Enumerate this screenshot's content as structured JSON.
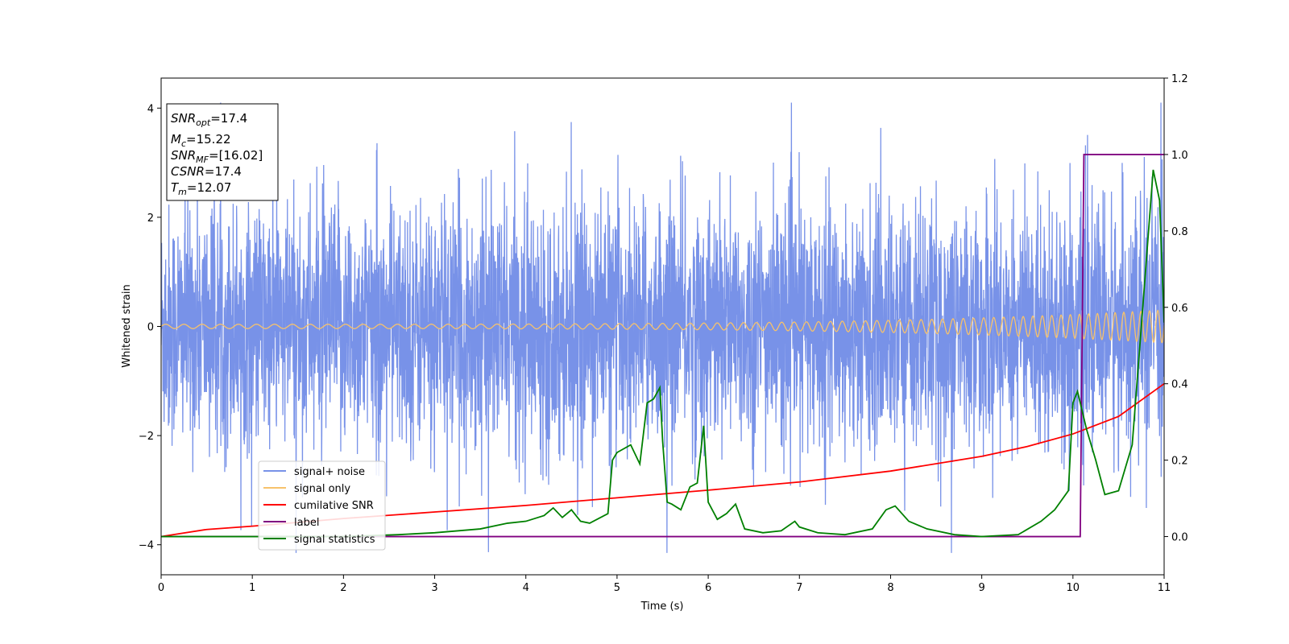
{
  "chart_data": {
    "type": "line",
    "title": "",
    "xlabel": "Time (s)",
    "ylabel": "Whitened strain",
    "xlim": [
      0,
      11
    ],
    "ylim": [
      -4.55,
      4.55
    ],
    "y2lim": [
      -0.1,
      1.2
    ],
    "xticks": [
      0,
      1,
      2,
      3,
      4,
      5,
      6,
      7,
      8,
      9,
      10,
      11
    ],
    "yticks": [
      -4,
      -2,
      0,
      2,
      4
    ],
    "y2ticks": [
      "0.0",
      "0.2",
      "0.4",
      "0.6",
      "0.8",
      "1.0",
      "1.2"
    ],
    "legend_position": "lower-left",
    "grid": false,
    "info_box": {
      "snr_opt": {
        "symbol": "SNR",
        "subscript": "opt",
        "value": "=17.4"
      },
      "mc": {
        "symbol": "M",
        "subscript": "c",
        "value": "=15.22"
      },
      "snr_mf": {
        "symbol": "SNR",
        "subscript": "MF",
        "value": "=[16.02]"
      },
      "csnr": {
        "symbol": "CSNR",
        "subscript": "",
        "value": "=17.4"
      },
      "tm": {
        "symbol": "T",
        "subscript": "m",
        "value": "=12.07"
      }
    },
    "series": [
      {
        "name": "signal+ noise",
        "color": "#7892e8",
        "axis": "left",
        "description_of_shape": "dense noise envelope",
        "envelope": {
          "typical_abs": 1.1,
          "peak_range": [
            -4.15,
            4.1
          ]
        }
      },
      {
        "name": "signal only",
        "color": "#f7c26b",
        "axis": "left",
        "chirp": {
          "amplitude_start": 0.04,
          "amplitude_end": 0.3,
          "freq_start_hz": 5,
          "freq_end_hz": 11
        }
      },
      {
        "name": "cumilative SNR",
        "color": "#ff0000",
        "axis": "left",
        "x": [
          0,
          0.5,
          1,
          2,
          3,
          4,
          5,
          6,
          7,
          8,
          9,
          9.5,
          10,
          10.5,
          11
        ],
        "y": [
          -3.85,
          -3.72,
          -3.66,
          -3.52,
          -3.4,
          -3.28,
          -3.14,
          -3.0,
          -2.85,
          -2.65,
          -2.38,
          -2.2,
          -1.97,
          -1.65,
          -1.05
        ]
      },
      {
        "name": "label",
        "color": "#800080",
        "axis": "right",
        "x": [
          0,
          10.08,
          10.12,
          11
        ],
        "y": [
          0,
          0,
          1,
          1
        ]
      },
      {
        "name": "signal statistics",
        "color": "#008000",
        "axis": "right",
        "x": [
          0,
          1,
          2,
          2.6,
          3,
          3.5,
          3.8,
          4.0,
          4.2,
          4.3,
          4.4,
          4.5,
          4.6,
          4.7,
          4.9,
          4.95,
          5.0,
          5.15,
          5.25,
          5.33,
          5.4,
          5.47,
          5.5,
          5.55,
          5.6,
          5.7,
          5.8,
          5.88,
          5.95,
          6.0,
          6.1,
          6.2,
          6.3,
          6.4,
          6.6,
          6.8,
          6.95,
          7.0,
          7.2,
          7.5,
          7.8,
          7.95,
          8.05,
          8.2,
          8.4,
          8.7,
          9.0,
          9.4,
          9.65,
          9.8,
          9.95,
          10.0,
          10.05,
          10.15,
          10.25,
          10.35,
          10.5,
          10.65,
          10.75,
          10.88,
          10.95,
          11.0
        ],
        "y": [
          0,
          0.0,
          0.0,
          0.005,
          0.01,
          0.02,
          0.035,
          0.04,
          0.055,
          0.075,
          0.05,
          0.07,
          0.04,
          0.035,
          0.06,
          0.2,
          0.22,
          0.24,
          0.19,
          0.35,
          0.36,
          0.39,
          0.25,
          0.09,
          0.085,
          0.07,
          0.13,
          0.14,
          0.29,
          0.09,
          0.045,
          0.06,
          0.085,
          0.02,
          0.01,
          0.015,
          0.04,
          0.025,
          0.01,
          0.005,
          0.02,
          0.07,
          0.08,
          0.04,
          0.02,
          0.005,
          0.0,
          0.005,
          0.04,
          0.07,
          0.12,
          0.35,
          0.38,
          0.28,
          0.2,
          0.11,
          0.12,
          0.24,
          0.55,
          0.96,
          0.88,
          0.56
        ]
      }
    ]
  }
}
